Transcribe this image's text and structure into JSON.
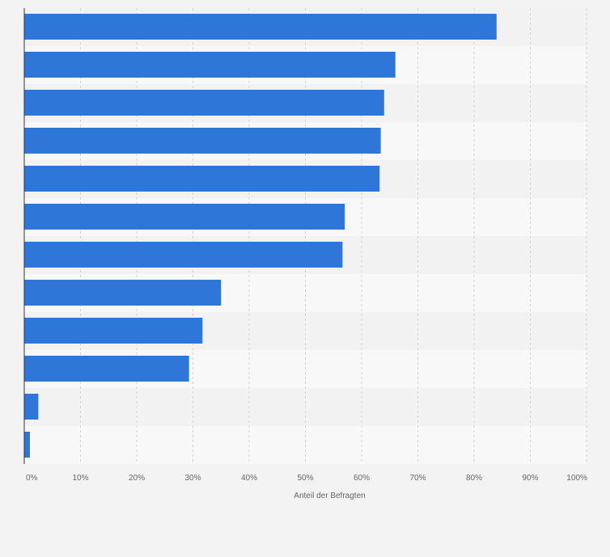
{
  "chart_data": {
    "type": "bar",
    "orientation": "horizontal",
    "categories": [
      "",
      "",
      "",
      "",
      "",
      "",
      "",
      "",
      "",
      "",
      "",
      ""
    ],
    "values": [
      84,
      66,
      64,
      63.4,
      63.2,
      57,
      56.6,
      35,
      31.7,
      29.3,
      2.5,
      1
    ],
    "xlabel": "Anteil der Befragten",
    "ylabel": "",
    "xlim": [
      0,
      100
    ],
    "x_ticks": [
      "0%",
      "10%",
      "20%",
      "30%",
      "40%",
      "50%",
      "60%",
      "70%",
      "80%",
      "90%",
      "100%"
    ],
    "grid": true,
    "colors": {
      "bar": "#2f76d9",
      "band_dark": "#f2f2f2",
      "band_light": "#f8f8f8",
      "grid": "#d4d4d4",
      "axis": "#333333"
    }
  }
}
